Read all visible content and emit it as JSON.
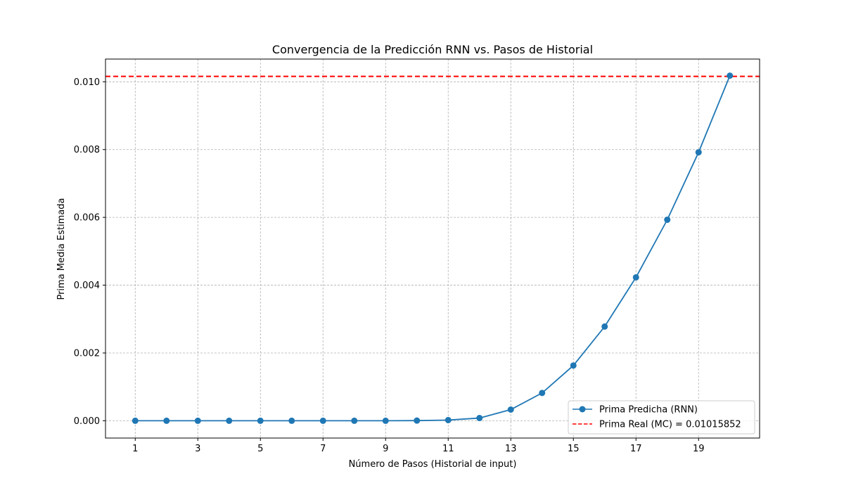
{
  "chart_data": {
    "type": "line",
    "title": "Convergencia de la Predicción RNN vs. Pasos de Historial",
    "xlabel": "Número de Pasos (Historial de input)",
    "ylabel": "Prima Media Estimada",
    "xlim": [
      0.05,
      20.95
    ],
    "ylim": [
      -0.00051,
      0.01067
    ],
    "xticks": [
      1,
      3,
      5,
      7,
      9,
      11,
      13,
      15,
      17,
      19
    ],
    "xtick_labels": [
      "1",
      "3",
      "5",
      "7",
      "9",
      "11",
      "13",
      "15",
      "17",
      "19"
    ],
    "yticks": [
      0.0,
      0.002,
      0.004,
      0.006,
      0.008,
      0.01
    ],
    "ytick_labels": [
      "0.000",
      "0.002",
      "0.004",
      "0.006",
      "0.008",
      "0.010"
    ],
    "grid": true,
    "legend_position": "lower-right",
    "series": [
      {
        "name": "Prima Predicha (RNN)",
        "style": "line-with-markers",
        "color": "#1f77b4",
        "x": [
          1,
          2,
          3,
          4,
          5,
          6,
          7,
          8,
          9,
          10,
          11,
          12,
          13,
          14,
          15,
          16,
          17,
          18,
          19,
          20
        ],
        "y": [
          0.0,
          0.0,
          0.0,
          0.0,
          0.0,
          0.0,
          0.0,
          0.0,
          0.0,
          5e-06,
          2e-05,
          8e-05,
          0.00033,
          0.00082,
          0.00163,
          0.00278,
          0.00423,
          0.00593,
          0.00792,
          0.01018
        ]
      }
    ],
    "reference_lines": [
      {
        "name": "Prima Real (MC) = 0.01015852",
        "orientation": "horizontal",
        "value": 0.01015852,
        "style": "dashed",
        "color": "#ff0000"
      }
    ]
  }
}
